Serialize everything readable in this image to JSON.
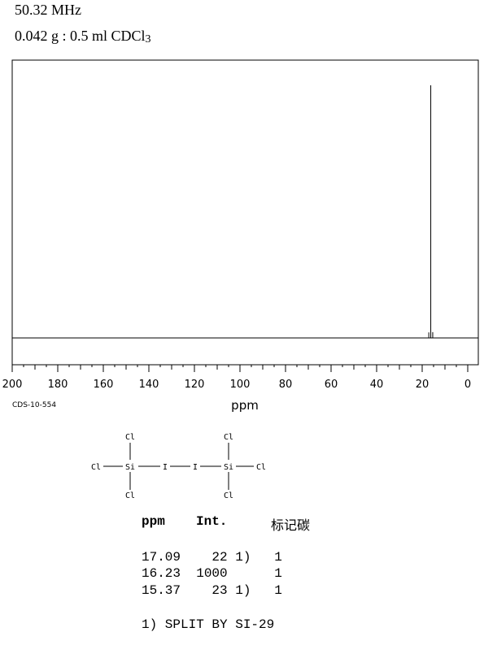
{
  "header": {
    "frequency": "50.32 MHz",
    "sample_main": "0.042 g : 0.5 ml CDCl",
    "sample_sub": "3"
  },
  "chart_data": {
    "type": "line",
    "xlabel": "ppm",
    "xlim": [
      200,
      0
    ],
    "x_ticks": [
      "200",
      "180",
      "160",
      "140",
      "120",
      "100",
      "80",
      "60",
      "40",
      "20",
      "0"
    ],
    "peaks": [
      {
        "x": 17.09,
        "intensity": 22
      },
      {
        "x": 16.23,
        "intensity": 1000
      },
      {
        "x": 15.37,
        "intensity": 23
      }
    ],
    "grid": false
  },
  "spectrum_id": "CDS-10-554",
  "structure": {
    "atoms": {
      "cl_top_left": "Cl",
      "cl_left": "Cl",
      "si_left": "Si",
      "i_left": "I",
      "i_right": "I",
      "si_right": "Si",
      "cl_right": "Cl",
      "cl_bottom_left": "Cl",
      "cl_top_right": "Cl",
      "cl_bottom_right": "Cl"
    }
  },
  "table": {
    "headers": {
      "ppm": "ppm",
      "int": "Int.",
      "assign": "标记碳"
    },
    "rows": [
      "17.09    22 1)   1",
      "16.23  1000      1",
      "15.37    23 1)   1"
    ],
    "footnote": "1) SPLIT BY SI-29"
  }
}
